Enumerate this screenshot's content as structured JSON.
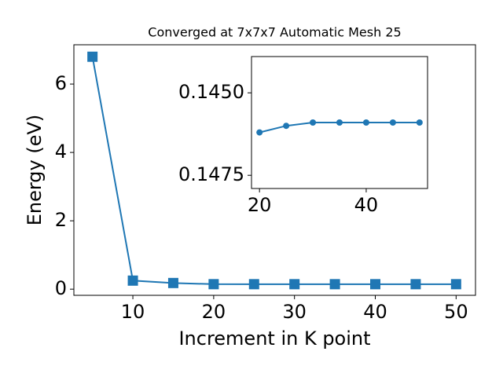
{
  "chart_data": [
    {
      "type": "line",
      "title": "Converged at 7x7x7 Automatic Mesh 25",
      "x_label": "Increment in K point",
      "y_label": "Energy (eV)",
      "x": [
        5,
        10,
        15,
        20,
        25,
        30,
        35,
        40,
        45,
        50
      ],
      "series": [
        {
          "color": "#1f77b4",
          "marker": "square",
          "values": [
            6.8,
            0.25,
            0.18,
            0.1462,
            0.146,
            0.1459,
            0.1459,
            0.1459,
            0.1459,
            0.1459
          ]
        }
      ],
      "xlim": [
        2.7,
        52.4
      ],
      "xticks": [
        10,
        20,
        30,
        40,
        50
      ],
      "ylim": [
        -0.18,
        7.15
      ],
      "yticks": [
        0,
        2,
        4,
        6
      ]
    },
    {
      "type": "line",
      "x": [
        20,
        25,
        30,
        35,
        40,
        45,
        50
      ],
      "series": [
        {
          "color": "#1f77b4",
          "marker": "circle",
          "values": [
            0.1462,
            0.146,
            0.1459,
            0.1459,
            0.1459,
            0.1459,
            0.1459
          ]
        }
      ],
      "xlim": [
        18.5,
        51.5
      ],
      "xticks": [
        20,
        40
      ],
      "ylim": [
        0.1479,
        0.1439
      ],
      "yticks": [
        {
          "value": 0.145,
          "label": "0.1450"
        },
        {
          "value": 0.1475,
          "label": "0.1475"
        }
      ]
    }
  ]
}
